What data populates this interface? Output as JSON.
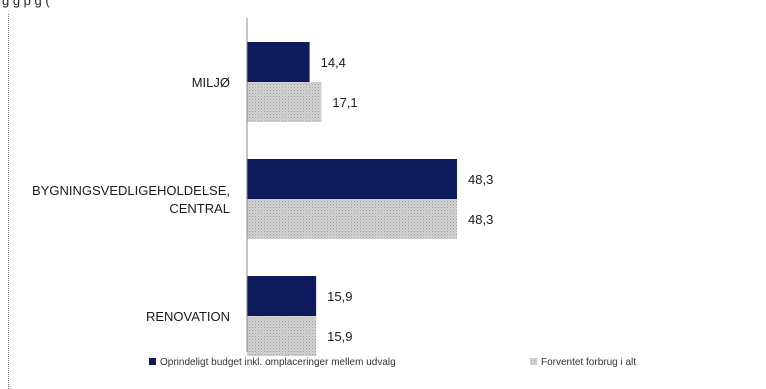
{
  "header_fragment": "g                                      g                    p g      (",
  "colors": {
    "navy": "#0d1a5c",
    "gray": "#c9c9c9",
    "gray_dot": "#9e9e9e",
    "axis": "#8a8a8a",
    "text": "#1a1a1a"
  },
  "chart_data": {
    "type": "bar",
    "orientation": "horizontal",
    "categories": [
      [
        "MILJØ"
      ],
      [
        "BYGNINGSVEDLIGEHOLDELSE,",
        "CENTRAL"
      ],
      [
        "RENOVATION"
      ]
    ],
    "series": [
      {
        "name": "Oprindeligt budget inkl. omplaceringer mellem udvalg",
        "values": [
          14.4,
          48.3,
          15.9
        ],
        "labels": [
          "14,4",
          "48,3",
          "15,9"
        ]
      },
      {
        "name": "Forventet forbrug i alt",
        "values": [
          17.1,
          48.3,
          15.9
        ],
        "labels": [
          "17,1",
          "48,3",
          "15,9"
        ]
      }
    ],
    "xlim": [
      0,
      80
    ],
    "grid": false,
    "legend_position": "bottom"
  }
}
